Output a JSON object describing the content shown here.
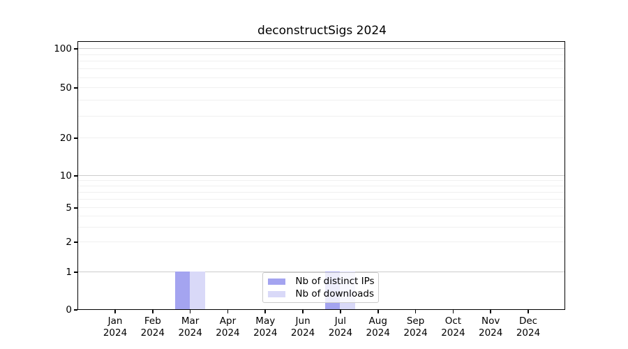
{
  "title": "deconstructSigs 2024",
  "legend": {
    "items": [
      {
        "label": "Nb of distinct IPs",
        "color": "#a4a4f0"
      },
      {
        "label": "Nb of downloads",
        "color": "#d9d9f8"
      }
    ]
  },
  "y_axis": {
    "tick_labels": [
      "100",
      "50",
      "20",
      "10",
      "5",
      "2",
      "1",
      "0"
    ]
  },
  "x_axis": {
    "tick_labels": [
      "Jan 2024",
      "Feb 2024",
      "Mar 2024",
      "Apr 2024",
      "May 2024",
      "Jun 2024",
      "Jul 2024",
      "Aug 2024",
      "Sep 2024",
      "Oct 2024",
      "Nov 2024",
      "Dec 2024"
    ]
  },
  "chart_data": {
    "type": "bar",
    "title": "deconstructSigs 2024",
    "categories": [
      "Jan 2024",
      "Feb 2024",
      "Mar 2024",
      "Apr 2024",
      "May 2024",
      "Jun 2024",
      "Jul 2024",
      "Aug 2024",
      "Sep 2024",
      "Oct 2024",
      "Nov 2024",
      "Dec 2024"
    ],
    "series": [
      {
        "name": "Nb of distinct IPs",
        "color": "#a4a4f0",
        "values": [
          0,
          0,
          1,
          0,
          0,
          0,
          1,
          0,
          0,
          0,
          0,
          0
        ]
      },
      {
        "name": "Nb of downloads",
        "color": "#d9d9f8",
        "values": [
          0,
          0,
          1,
          0,
          0,
          0,
          1,
          0,
          0,
          0,
          0,
          0
        ]
      }
    ],
    "y_ticks": [
      0,
      1,
      2,
      5,
      10,
      20,
      50,
      100
    ],
    "y_scale": "log (linear segment below 1)",
    "ylim": [
      0,
      112
    ],
    "xlabel": "",
    "ylabel": "",
    "grid": "horizontal",
    "legend_position": "lower center, inside plot"
  },
  "colors": {
    "bar_distinct_ips": "#a4a4f0",
    "bar_downloads": "#d9d9f8",
    "grid_major": "#cccccc",
    "grid_minor": "#f0f0f0",
    "background": "#ffffff"
  }
}
